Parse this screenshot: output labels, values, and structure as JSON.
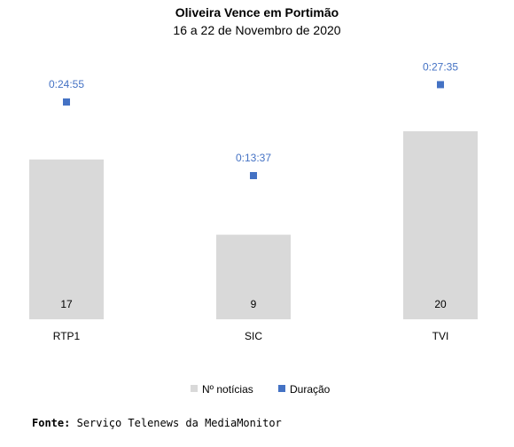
{
  "chart_data": {
    "type": "bar",
    "title": "Oliveira Vence em Portimão",
    "subtitle": "16 a 22 de Novembro de 2020",
    "categories": [
      "RTP1",
      "SIC",
      "TVI"
    ],
    "series": [
      {
        "name": "Nº notícias",
        "type": "bar",
        "values": [
          17,
          9,
          20
        ],
        "color": "#D9D9D9"
      },
      {
        "name": "Duração",
        "type": "scatter",
        "values": [
          "0:24:55",
          "0:13:37",
          "0:27:35"
        ],
        "color": "#4472C4"
      }
    ],
    "legend_position": "bottom",
    "grid": false
  },
  "source": {
    "label": "Fonte:",
    "text": "Serviço Telenews da MediaMonitor"
  }
}
